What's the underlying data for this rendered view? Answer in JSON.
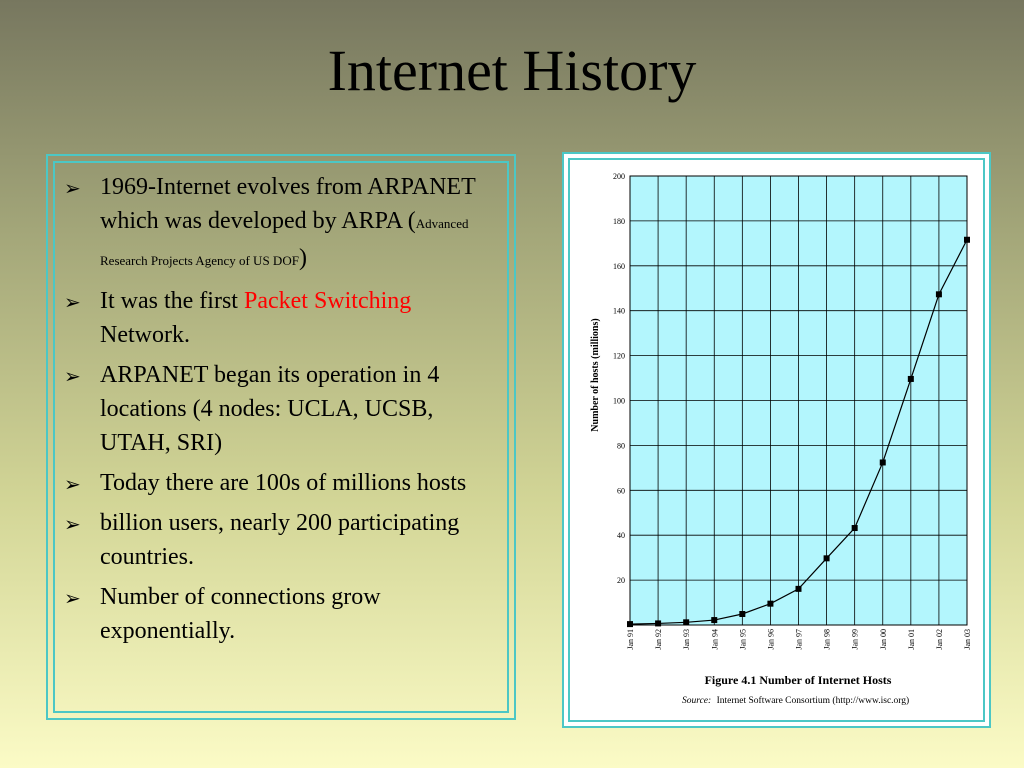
{
  "title": "Internet History",
  "bullets": [
    {
      "pre": "1969-Internet evolves from ARPANET  which  was developed by ARPA (",
      "small": "Advanced Research Projects Agency of US DOF",
      "post": ")"
    },
    {
      "pre": "It was the first ",
      "highlight": "Packet Switching",
      "post": " Network."
    },
    {
      "pre": "ARPANET began its operation in 4 locations (4 nodes: UCLA, UCSB, UTAH, SRI)"
    },
    {
      "pre": "Today there are 100s of millions hosts"
    },
    {
      "pre": "billion users, nearly 200 participating countries."
    },
    {
      "pre": "Number of connections grow exponentially."
    }
  ],
  "colors": {
    "highlight": "#ff0000",
    "border": "#4cc7c5",
    "plot_bg": "#b3f6fd"
  },
  "chart_data": {
    "type": "line",
    "title": "Figure 4.1 Number of Internet Hosts",
    "source_label": "Source:",
    "source_text": "Internet Software Consortium (http://www.isc.org)",
    "ylabel": "Number of hosts (millions)",
    "xlabel": "",
    "categories": [
      "Jan 91",
      "Jan 92",
      "Jan 93",
      "Jan 94",
      "Jan 95",
      "Jan 96",
      "Jan 97",
      "Jan 98",
      "Jan 99",
      "Jan 00",
      "Jan 01",
      "Jan 02",
      "Jan 03"
    ],
    "values": [
      0.4,
      0.7,
      1.2,
      2.2,
      4.9,
      9.5,
      16.1,
      29.7,
      43.2,
      72.4,
      109.6,
      147.3,
      171.6
    ],
    "ylim": [
      0,
      200
    ],
    "yticks": [
      20,
      40,
      60,
      80,
      100,
      120,
      140,
      160,
      180,
      200
    ],
    "grid": true,
    "marker": "square"
  }
}
